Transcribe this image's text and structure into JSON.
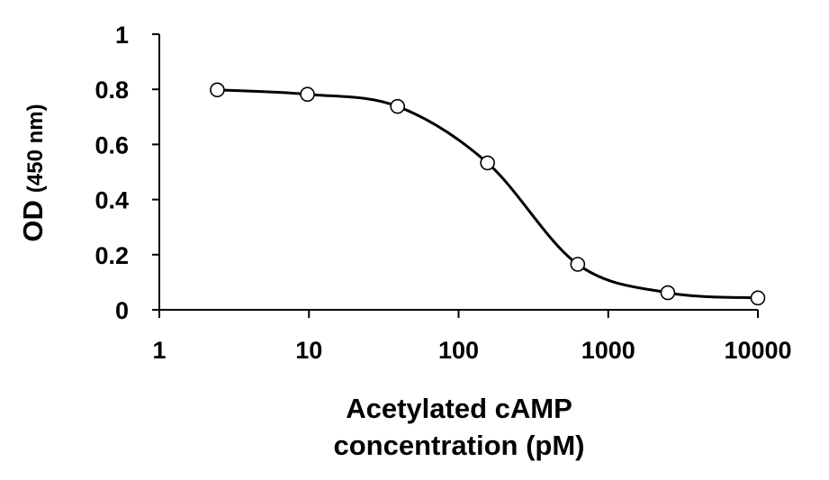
{
  "chart_data": {
    "type": "scatter",
    "title": "",
    "xlabel_lines": [
      "Acetylated cAMP",
      "concentration (pM)"
    ],
    "ylabel_main": "OD",
    "ylabel_unit": "(450 nm)",
    "x_scale": "log",
    "xlim": [
      1,
      10000
    ],
    "ylim": [
      0,
      1
    ],
    "x_ticks": [
      1,
      10,
      100,
      1000,
      10000
    ],
    "x_tick_labels": [
      "1",
      "10",
      "100",
      "1000",
      "10000"
    ],
    "y_ticks": [
      0,
      0.2,
      0.4,
      0.6,
      0.8,
      1
    ],
    "y_tick_labels": [
      "0",
      "0.2",
      "0.4",
      "0.6",
      "0.8",
      "1"
    ],
    "grid": false,
    "legend": "none",
    "line_color": "#000000",
    "marker_fill": "#ffffff",
    "series": [
      {
        "points": [
          {
            "x": 2.44,
            "y": 0.798
          },
          {
            "x": 9.77,
            "y": 0.782
          },
          {
            "x": 39.1,
            "y": 0.738
          },
          {
            "x": 156,
            "y": 0.533
          },
          {
            "x": 625,
            "y": 0.165
          },
          {
            "x": 2500,
            "y": 0.062
          },
          {
            "x": 10000,
            "y": 0.043
          }
        ]
      }
    ]
  }
}
